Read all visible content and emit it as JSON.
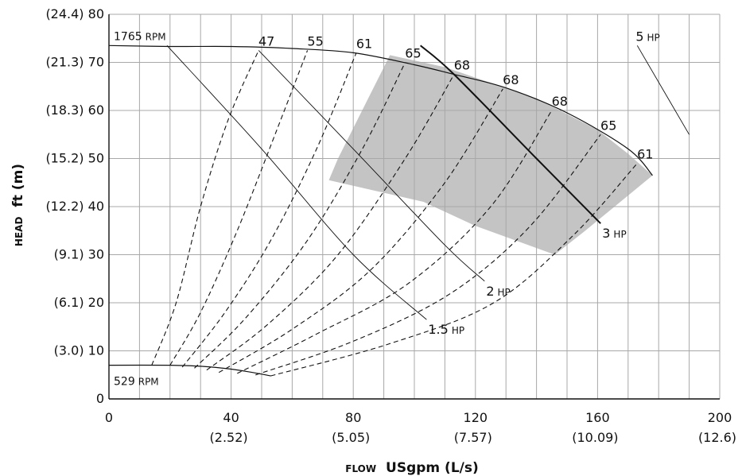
{
  "chart_data": {
    "type": "line",
    "title": "",
    "xlabel": {
      "prefix": "FLOW",
      "main": "USgpm (L/s)"
    },
    "ylabel": {
      "prefix": "HEAD",
      "main": "ft (m)"
    },
    "xlim": [
      0,
      200
    ],
    "ylim": [
      0,
      80
    ],
    "grid": true,
    "x_ticks": [
      {
        "value": 0,
        "label": "0",
        "sub": ""
      },
      {
        "value": 40,
        "label": "40",
        "sub": "(2.52)"
      },
      {
        "value": 80,
        "label": "80",
        "sub": "(5.05)"
      },
      {
        "value": 120,
        "label": "120",
        "sub": "(7.57)"
      },
      {
        "value": 160,
        "label": "160",
        "sub": "(10.09)"
      },
      {
        "value": 200,
        "label": "200",
        "sub": "(12.6)"
      }
    ],
    "y_ticks": [
      {
        "value": 0,
        "label": "0"
      },
      {
        "value": 10,
        "label": "(3.0) 10"
      },
      {
        "value": 20,
        "label": "(6.1) 20"
      },
      {
        "value": 30,
        "label": "(9.1) 30"
      },
      {
        "value": 40,
        "label": "(12.2) 40"
      },
      {
        "value": 50,
        "label": "(15.2) 50"
      },
      {
        "value": 60,
        "label": "(18.3) 60"
      },
      {
        "value": 70,
        "label": "(21.3) 70"
      },
      {
        "value": 80,
        "label": "(24.4) 80"
      }
    ],
    "speed_curves": [
      {
        "rpm": "1765",
        "unit": "RPM",
        "x": [
          0,
          20,
          40,
          60,
          80,
          100,
          113,
          130,
          150,
          170,
          178
        ],
        "y": [
          73.5,
          73.3,
          73.3,
          72.9,
          72,
          69.5,
          67.5,
          64.7,
          59.5,
          52,
          46.5
        ]
      },
      {
        "rpm": "529",
        "unit": "RPM",
        "x": [
          0,
          20,
          30,
          40,
          47,
          53
        ],
        "y": [
          7,
          7,
          6.8,
          6.2,
          5.5,
          4.8
        ]
      }
    ],
    "efficiency_curves": [
      {
        "label": "47",
        "x": [
          14,
          22,
          30,
          39,
          49
        ],
        "y": [
          7,
          20,
          40,
          58,
          72.5
        ]
      },
      {
        "label": "55",
        "x": [
          20,
          30,
          42,
          55,
          65
        ],
        "y": [
          7,
          18,
          35,
          56,
          72.5
        ]
      },
      {
        "label": "61",
        "x": [
          24,
          38,
          53,
          68,
          81
        ],
        "y": [
          6.6,
          18,
          33,
          52,
          72
        ]
      },
      {
        "label": "65",
        "x": [
          28,
          45,
          65,
          83,
          97
        ],
        "y": [
          6.4,
          17,
          33,
          52,
          70
        ]
      },
      {
        "label": "68",
        "x": [
          32,
          52,
          75,
          97,
          113
        ],
        "y": [
          6,
          15.5,
          30,
          50,
          67.5
        ]
      },
      {
        "label": "68",
        "x": [
          36,
          60,
          86,
          110,
          129
        ],
        "y": [
          5.5,
          14.5,
          27,
          45,
          64.5
        ]
      },
      {
        "label": "68",
        "x": [
          42,
          68,
          98,
          125,
          145
        ],
        "y": [
          5.3,
          13.5,
          24,
          40,
          60
        ]
      },
      {
        "label": "65",
        "x": [
          48,
          80,
          112,
          138,
          161
        ],
        "y": [
          5,
          12,
          22,
          36,
          55
        ]
      },
      {
        "label": "61",
        "x": [
          53,
          92,
          126,
          152,
          173
        ],
        "y": [
          4.8,
          11.5,
          20,
          34,
          49
        ]
      }
    ],
    "power_curves": [
      {
        "hp": "1.5",
        "unit": "HP",
        "x": [
          19,
          50,
          80,
          104
        ],
        "y": [
          73.5,
          52,
          30,
          16.5
        ]
      },
      {
        "hp": "2",
        "unit": "HP",
        "x": [
          49,
          80,
          110,
          123
        ],
        "y": [
          72.5,
          52,
          32,
          24.5
        ]
      },
      {
        "hp": "3",
        "unit": "HP",
        "x": [
          102,
          113,
          140,
          161
        ],
        "y": [
          73.5,
          67.5,
          50,
          36.5
        ]
      },
      {
        "hp": "5",
        "unit": "HP",
        "x": [
          173,
          190
        ],
        "y": [
          73.5,
          55
        ]
      }
    ],
    "preferred_region": {
      "color": "#c4c4c4",
      "x": [
        92,
        110,
        140,
        160,
        170,
        178,
        156,
        146,
        120,
        103,
        72,
        75
      ],
      "y": [
        71.5,
        69,
        62.5,
        56,
        51,
        46.5,
        35,
        30,
        36,
        41,
        45.5,
        50
      ]
    }
  }
}
